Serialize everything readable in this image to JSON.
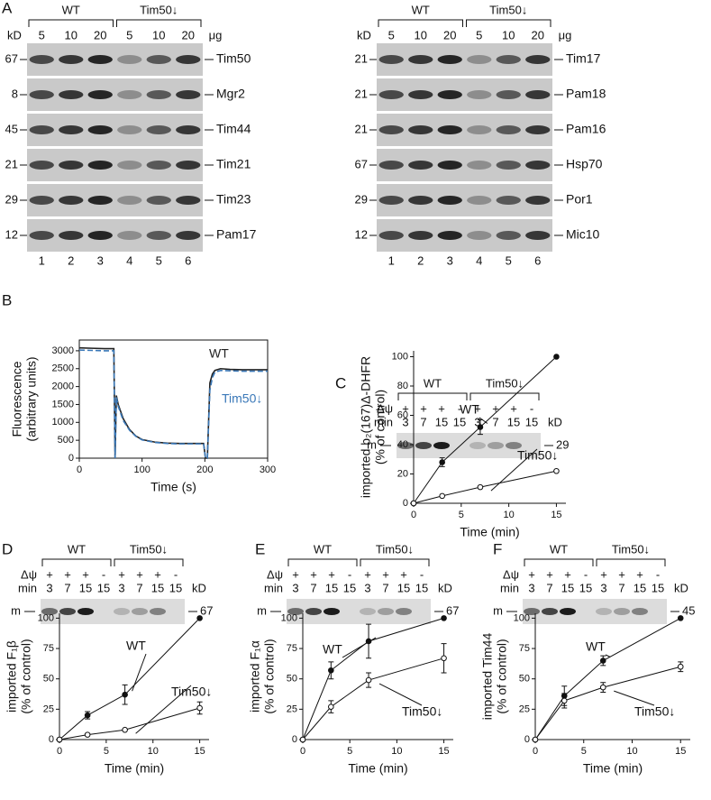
{
  "panel_a": {
    "letter": "A",
    "kd": "kD",
    "unit": "μg",
    "lanes": [
      "1",
      "2",
      "3",
      "4",
      "5",
      "6"
    ],
    "blots": [
      {
        "groups": [
          "WT",
          "Tim50↓"
        ],
        "loads": [
          "5",
          "10",
          "20",
          "5",
          "10",
          "20"
        ],
        "rows": [
          {
            "marker": "67",
            "label": "Tim50"
          },
          {
            "marker": "8",
            "label": "Mgr2"
          },
          {
            "marker": "45",
            "label": "Tim44"
          },
          {
            "marker": "21",
            "label": "Tim21"
          },
          {
            "marker": "29",
            "label": "Tim23"
          },
          {
            "marker": "12",
            "label": "Pam17"
          }
        ]
      },
      {
        "groups": [
          "WT",
          "Tim50↓"
        ],
        "loads": [
          "5",
          "10",
          "20",
          "5",
          "10",
          "20"
        ],
        "rows": [
          {
            "marker": "21",
            "label": "Tim17"
          },
          {
            "marker": "21",
            "label": "Pam18"
          },
          {
            "marker": "21",
            "label": "Pam16"
          },
          {
            "marker": "67",
            "label": "Hsp70"
          },
          {
            "marker": "29",
            "label": "Por1"
          },
          {
            "marker": "12",
            "label": "Mic10"
          }
        ]
      }
    ]
  },
  "imports": [
    {
      "letter": "C",
      "groups": [
        "WT",
        "Tim50↓"
      ],
      "psi": "Δψ",
      "psi_signs": [
        "+",
        "+",
        "+",
        "-",
        "+",
        "+",
        "+",
        "-"
      ],
      "min": "min",
      "times": [
        "3",
        "7",
        "15",
        "15",
        "3",
        "7",
        "15",
        "15"
      ],
      "kd": "kD",
      "band": "m",
      "marker": "29"
    },
    {
      "letter": "D",
      "groups": [
        "WT",
        "Tim50↓"
      ],
      "psi": "Δψ",
      "psi_signs": [
        "+",
        "+",
        "+",
        "-",
        "+",
        "+",
        "+",
        "-"
      ],
      "min": "min",
      "times": [
        "3",
        "7",
        "15",
        "15",
        "3",
        "7",
        "15",
        "15"
      ],
      "kd": "kD",
      "band": "m",
      "marker": "67"
    },
    {
      "letter": "E",
      "groups": [
        "WT",
        "Tim50↓"
      ],
      "psi": "Δψ",
      "psi_signs": [
        "+",
        "+",
        "+",
        "-",
        "+",
        "+",
        "+",
        "-"
      ],
      "min": "min",
      "times": [
        "3",
        "7",
        "15",
        "15",
        "3",
        "7",
        "15",
        "15"
      ],
      "kd": "kD",
      "band": "m",
      "marker": "67"
    },
    {
      "letter": "F",
      "groups": [
        "WT",
        "Tim50↓"
      ],
      "psi": "Δψ",
      "psi_signs": [
        "+",
        "+",
        "+",
        "-",
        "+",
        "+",
        "+",
        "-"
      ],
      "min": "min",
      "times": [
        "3",
        "7",
        "15",
        "15",
        "3",
        "7",
        "15",
        "15"
      ],
      "kd": "kD",
      "band": "m",
      "marker": "45"
    }
  ],
  "chart_data": [
    {
      "type": "line",
      "panel": "B",
      "x_label": "Time (s)",
      "y_label": [
        "Fluorescence",
        "(arbitrary units)"
      ],
      "x": [
        0,
        20,
        40,
        55,
        57,
        59,
        62,
        70,
        80,
        90,
        100,
        120,
        140,
        160,
        180,
        198,
        201,
        204,
        208,
        212,
        216,
        225,
        240,
        260,
        280,
        300
      ],
      "series": [
        {
          "name": "WT",
          "color": "#222222",
          "values": [
            3080,
            3070,
            3060,
            3060,
            0,
            1750,
            1500,
            1100,
            800,
            620,
            520,
            450,
            420,
            410,
            410,
            410,
            0,
            0,
            2100,
            2350,
            2450,
            2500,
            2480,
            2470,
            2470,
            2470
          ]
        },
        {
          "name": "Tim50↓",
          "color": "#3a78b8",
          "dashed": true,
          "values": [
            3020,
            3010,
            3000,
            3000,
            0,
            1700,
            1450,
            1050,
            780,
            610,
            510,
            440,
            410,
            400,
            400,
            400,
            0,
            0,
            1900,
            2250,
            2400,
            2450,
            2440,
            2430,
            2430,
            2430
          ]
        }
      ],
      "xlim": [
        0,
        300
      ],
      "ylim": [
        0,
        3300
      ],
      "xticks": [
        0,
        100,
        200,
        300
      ],
      "yticks": [
        0,
        500,
        1000,
        1500,
        2000,
        2500,
        3000
      ],
      "frame": true
    },
    {
      "type": "line",
      "x_label": "Time (min)",
      "y_label": [
        "imported b₂(167)Δ-DHFR",
        "(% of control)"
      ],
      "x": [
        0,
        3,
        7,
        15
      ],
      "series": [
        {
          "name": "WT",
          "color": "#111111",
          "marker": "filled",
          "values": [
            0,
            28,
            52,
            100
          ],
          "errors": [
            null,
            3,
            5,
            null
          ]
        },
        {
          "name": "Tim50↓",
          "color": "#111111",
          "marker": "open",
          "values": [
            0,
            5,
            11,
            22
          ],
          "errors": [
            null,
            null,
            null,
            null
          ]
        }
      ],
      "xlim": [
        0,
        16
      ],
      "ylim": [
        0,
        104
      ],
      "xticks": [
        0,
        5,
        10,
        15
      ],
      "yticks": [
        0,
        20,
        40,
        60,
        80,
        100
      ]
    },
    {
      "type": "line",
      "x_label": "Time (min)",
      "y_label": [
        "imported F₁β",
        "(% of control)"
      ],
      "x": [
        0,
        3,
        7,
        15
      ],
      "series": [
        {
          "name": "WT",
          "color": "#111111",
          "marker": "filled",
          "values": [
            0,
            20,
            37,
            100
          ],
          "errors": [
            null,
            3,
            8,
            null
          ]
        },
        {
          "name": "Tim50↓",
          "color": "#111111",
          "marker": "open",
          "values": [
            0,
            4,
            8,
            26
          ],
          "errors": [
            null,
            null,
            null,
            5
          ]
        }
      ],
      "xlim": [
        0,
        16
      ],
      "ylim": [
        0,
        104
      ],
      "xticks": [
        0,
        5,
        10,
        15
      ],
      "yticks": [
        0,
        25,
        50,
        75,
        100
      ]
    },
    {
      "type": "line",
      "x_label": "Time (min)",
      "y_label": [
        "imported F₁α",
        "(% of control)"
      ],
      "x": [
        0,
        3,
        7,
        15
      ],
      "series": [
        {
          "name": "WT",
          "color": "#111111",
          "marker": "filled",
          "values": [
            0,
            57,
            81,
            100
          ],
          "errors": [
            null,
            7,
            14,
            null
          ]
        },
        {
          "name": "Tim50↓",
          "color": "#111111",
          "marker": "open",
          "values": [
            0,
            27,
            49,
            67
          ],
          "errors": [
            null,
            5,
            6,
            12
          ]
        }
      ],
      "xlim": [
        0,
        16
      ],
      "ylim": [
        0,
        104
      ],
      "xticks": [
        0,
        5,
        10,
        15
      ],
      "yticks": [
        0,
        25,
        50,
        75,
        100
      ]
    },
    {
      "type": "line",
      "x_label": "Time (min)",
      "y_label": [
        "imported Tim44",
        "(% of control)"
      ],
      "x": [
        0,
        3,
        7,
        15
      ],
      "series": [
        {
          "name": "WT",
          "color": "#111111",
          "marker": "filled",
          "values": [
            0,
            36,
            65,
            100
          ],
          "errors": [
            null,
            8,
            4,
            null
          ]
        },
        {
          "name": "Tim50↓",
          "color": "#111111",
          "marker": "open",
          "values": [
            0,
            32,
            43,
            60
          ],
          "errors": [
            null,
            6,
            4,
            4
          ]
        }
      ],
      "xlim": [
        0,
        16
      ],
      "ylim": [
        0,
        104
      ],
      "xticks": [
        0,
        5,
        10,
        15
      ],
      "yticks": [
        0,
        25,
        50,
        75,
        100
      ]
    }
  ]
}
